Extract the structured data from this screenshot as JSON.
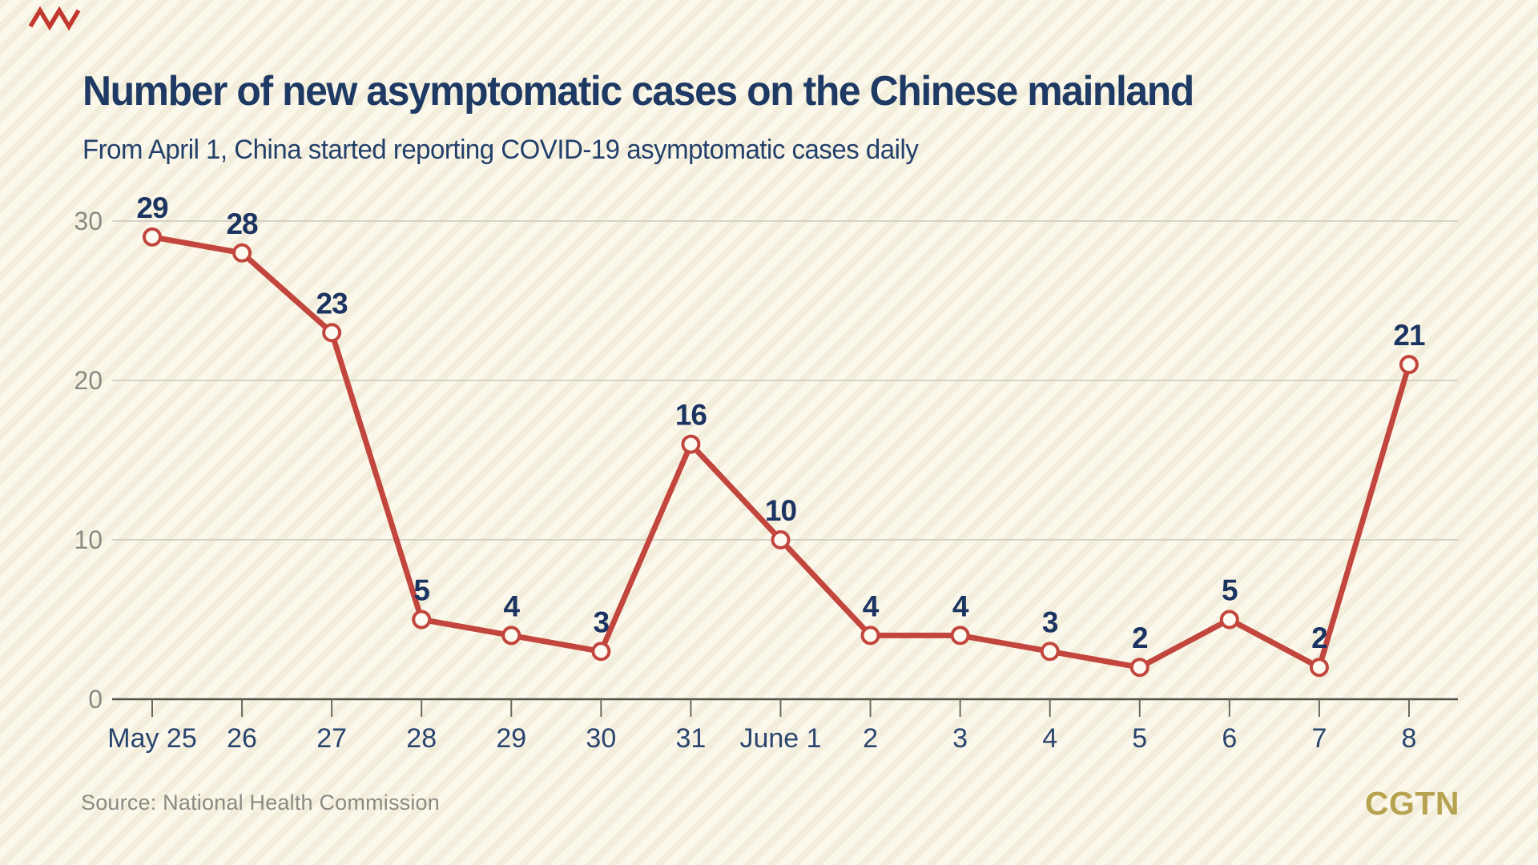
{
  "brand": {
    "zigzag_icon": "red-zigzag-brand-mark",
    "zigzag_color": "#c2382f",
    "logo_text": "CGTN",
    "logo_color": "#b7a24f"
  },
  "header": {
    "title": "Number of new asymptomatic cases on the Chinese mainland",
    "subtitle": "From April 1, China started reporting COVID-19 asymptomatic cases daily"
  },
  "footer": {
    "source": "Source: National Health Commission"
  },
  "chart_data": {
    "type": "line",
    "title": "Number of new asymptomatic cases on the Chinese mainland",
    "categories": [
      "May 25",
      "26",
      "27",
      "28",
      "29",
      "30",
      "31",
      "June 1",
      "2",
      "3",
      "4",
      "5",
      "6",
      "7",
      "8"
    ],
    "values": [
      29,
      28,
      23,
      5,
      4,
      3,
      16,
      10,
      4,
      4,
      3,
      2,
      5,
      2,
      21
    ],
    "xlabel": "",
    "ylabel": "",
    "ylim": [
      0,
      32
    ],
    "yticks": [
      0,
      10,
      20,
      30
    ],
    "grid": "horizontal",
    "legend": "none",
    "data_labels": "shown above each point",
    "line_color": "#c2463d",
    "marker_fill": "#fdfbf1",
    "marker_stroke": "#c2463d",
    "point_label_color": "#1c3461",
    "x_tick_label_color": "#2a456f",
    "y_tick_label_color": "#8b8a82",
    "gridline_color": "#c9c7bf",
    "axis_color": "#53524b",
    "tick_color": "#6a695f"
  }
}
